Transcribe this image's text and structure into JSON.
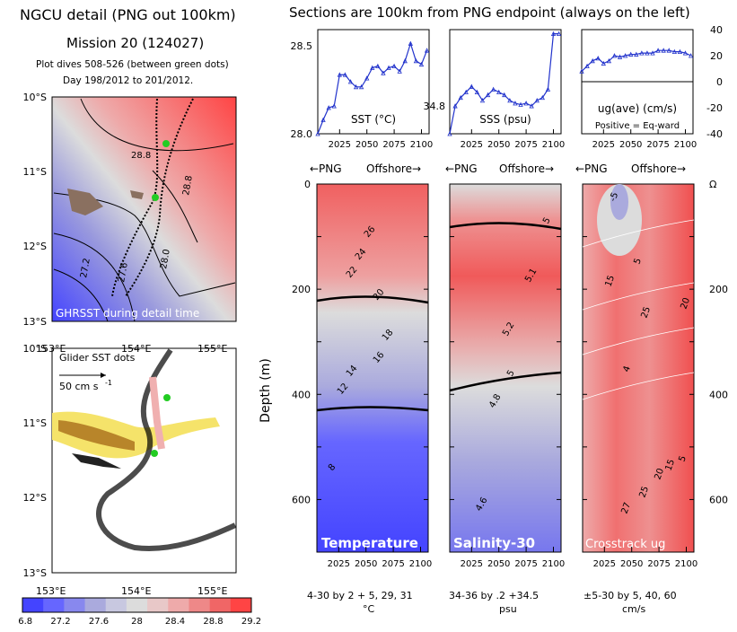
{
  "header": {
    "left_title": "NGCU detail (PNG out 100km)",
    "mission": "Mission 20 (124027)",
    "dives": "Plot dives 508-526 (between green dots)",
    "days": "Day 198/2012 to 201/2012.",
    "right_title": "Sections are 100km from PNG endpoint (always on the left)"
  },
  "colors": {
    "sst_line": "#2233cc",
    "green_dot": "#22cc22",
    "map_low": "#4444ff",
    "map_mid": "#dcdcdc",
    "map_high": "#ff4444",
    "sal_yellow": "#f5e36a",
    "sal_brown": "#b8852a"
  },
  "map_top": {
    "lat_labels": [
      "10°S",
      "11°S",
      "12°S",
      "13°S"
    ],
    "caption": "GHRSST during detail time",
    "contour_labels": [
      "28.8",
      "28.8",
      "28.0",
      "27.6",
      "27.2"
    ]
  },
  "map_bottom": {
    "lon_labels": [
      "153°E",
      "154°E",
      "155°E"
    ],
    "lat_labels": [
      "10°S",
      "11°S",
      "12°S",
      "13°S"
    ],
    "caption": "Glider SST dots",
    "scale_label": "50 cm s",
    "scale_exp": "-1"
  },
  "colorbar": {
    "ticks": [
      "26.8",
      "27.2",
      "27.6",
      "28",
      "28.4",
      "28.8",
      "29.2"
    ],
    "colors": [
      "#4444ff",
      "#6666ff",
      "#8888ee",
      "#aaaadd",
      "#c8c8e0",
      "#dcdcdc",
      "#e8c8c8",
      "#eeaaaa",
      "#ee8888",
      "#f06666",
      "#ff4444"
    ]
  },
  "chart_data": [
    {
      "type": "line",
      "title": "SST (°C)",
      "x": [
        2005,
        2010,
        2015,
        2020,
        2025,
        2030,
        2035,
        2040,
        2045,
        2050,
        2055,
        2060,
        2065,
        2070,
        2075,
        2080,
        2085,
        2090,
        2095,
        2100,
        2105
      ],
      "values": [
        28.0,
        28.08,
        28.15,
        28.16,
        28.34,
        28.34,
        28.3,
        28.27,
        28.27,
        28.32,
        28.38,
        28.39,
        28.35,
        28.38,
        28.39,
        28.36,
        28.42,
        28.52,
        28.42,
        28.4,
        28.48
      ],
      "ylim": [
        28.0,
        28.6
      ],
      "yticks": [
        "28.0",
        "28.5"
      ],
      "xticks": [
        "2025",
        "2050",
        "2075",
        "2100"
      ]
    },
    {
      "type": "line",
      "title": "SSS (psu)",
      "x": [
        2005,
        2010,
        2015,
        2020,
        2025,
        2030,
        2035,
        2040,
        2045,
        2050,
        2055,
        2060,
        2065,
        2070,
        2075,
        2080,
        2085,
        2090,
        2095,
        2100,
        2105
      ],
      "values": [
        34.2,
        34.4,
        34.46,
        34.5,
        34.54,
        34.5,
        34.44,
        34.48,
        34.52,
        34.5,
        34.48,
        34.44,
        34.42,
        34.41,
        34.42,
        34.4,
        34.44,
        34.46,
        34.52,
        34.92,
        34.92
      ],
      "ylim": [
        34.2,
        34.95
      ],
      "yticks": [
        "34.8"
      ],
      "xticks": [
        "2025",
        "2050",
        "2075",
        "2100"
      ]
    },
    {
      "type": "line",
      "title": "ug(ave) (cm/s)",
      "subtitle": "Positive = Eq-ward",
      "x": [
        2005,
        2010,
        2015,
        2020,
        2025,
        2030,
        2035,
        2040,
        2045,
        2050,
        2055,
        2060,
        2065,
        2070,
        2075,
        2080,
        2085,
        2090,
        2095,
        2100,
        2105
      ],
      "values": [
        8,
        12,
        16,
        18,
        14,
        16,
        20,
        19,
        20,
        21,
        21,
        22,
        22,
        22,
        24,
        24,
        24,
        23,
        23,
        22,
        20
      ],
      "ylim": [
        -40,
        40
      ],
      "yticks": [
        "40",
        "20",
        "0",
        "-20",
        "-40"
      ],
      "xticks": [
        "2025",
        "2050",
        "2075",
        "2100"
      ]
    },
    {
      "type": "heatmap",
      "title": "Temperature",
      "ylabel": "Depth (m)",
      "yticks": [
        "0",
        "200",
        "400",
        "600"
      ],
      "xticks": [
        "2025",
        "2050",
        "2075",
        "2100"
      ],
      "contour_labels": [
        "26",
        "24",
        "22",
        "20",
        "18",
        "16",
        "14",
        "12",
        "8"
      ],
      "footer": [
        "4-30 by 2 + 5, 29, 31",
        "°C"
      ]
    },
    {
      "type": "heatmap",
      "title": "Salinity-30",
      "contour_labels": [
        "5",
        "5.1",
        "5.2",
        "5",
        "4.8",
        "4.6"
      ],
      "xticks": [
        "2025",
        "2050",
        "2075",
        "2100"
      ],
      "footer": [
        "34-36 by .2 +34.5",
        "psu"
      ]
    },
    {
      "type": "heatmap",
      "title": "Crosstrack ug",
      "contour_labels": [
        "-5",
        "5",
        "15",
        "25",
        "20",
        "4",
        "20",
        "25",
        "27",
        "15",
        "5"
      ],
      "xticks": [
        "2025",
        "2050",
        "2075",
        "2100"
      ],
      "yticks_right": [
        "0",
        "200",
        "400",
        "600"
      ],
      "footer": [
        "±5-30 by 5, 40, 60",
        "cm/s"
      ]
    }
  ],
  "sections": {
    "header_left": "←PNG",
    "header_right": "Offshore→"
  }
}
